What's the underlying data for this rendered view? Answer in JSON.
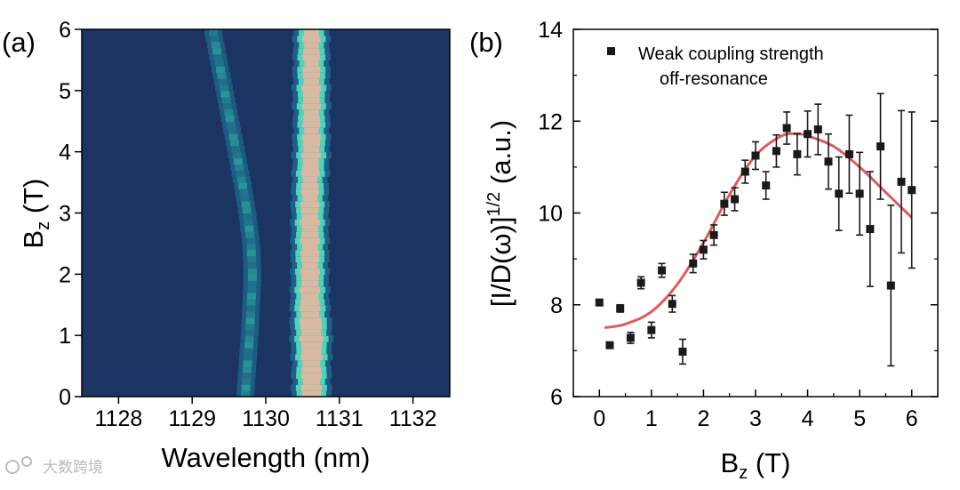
{
  "chart_data": [
    {
      "type": "heatmap",
      "panel_label": "(a)",
      "xlabel": "Wavelength (nm)",
      "ylabel_main": "B",
      "ylabel_sub": "z",
      "ylabel_unit": " (T)",
      "xlim": [
        1127.5,
        1132.5
      ],
      "ylim": [
        0,
        6
      ],
      "xticks": [
        1128,
        1129,
        1130,
        1131,
        1132
      ],
      "yticks": [
        0,
        1,
        2,
        3,
        4,
        5,
        6
      ],
      "colors": {
        "background": "#1c3461",
        "low": "#1d5f86",
        "mid": "#2a9c9c",
        "high": "#4fd3bb",
        "peak": "#d8b9a2"
      },
      "bright_line": [
        {
          "B": 0.0,
          "center": 1130.62,
          "width": 0.26
        },
        {
          "B": 0.5,
          "center": 1130.62,
          "width": 0.26
        },
        {
          "B": 1.0,
          "center": 1130.62,
          "width": 0.3
        },
        {
          "B": 1.5,
          "center": 1130.6,
          "width": 0.26
        },
        {
          "B": 2.0,
          "center": 1130.6,
          "width": 0.24
        },
        {
          "B": 2.5,
          "center": 1130.6,
          "width": 0.24
        },
        {
          "B": 3.0,
          "center": 1130.6,
          "width": 0.24
        },
        {
          "B": 3.5,
          "center": 1130.6,
          "width": 0.22
        },
        {
          "B": 4.0,
          "center": 1130.62,
          "width": 0.24
        },
        {
          "B": 4.5,
          "center": 1130.62,
          "width": 0.22
        },
        {
          "B": 5.0,
          "center": 1130.62,
          "width": 0.24
        },
        {
          "B": 5.5,
          "center": 1130.62,
          "width": 0.22
        },
        {
          "B": 6.0,
          "center": 1130.62,
          "width": 0.22
        }
      ],
      "weak_line": [
        {
          "B": 0.0,
          "center": 1129.72
        },
        {
          "B": 0.5,
          "center": 1129.75
        },
        {
          "B": 1.0,
          "center": 1129.78
        },
        {
          "B": 1.5,
          "center": 1129.8
        },
        {
          "B": 2.0,
          "center": 1129.82
        },
        {
          "B": 2.5,
          "center": 1129.8
        },
        {
          "B": 3.0,
          "center": 1129.75
        },
        {
          "B": 3.5,
          "center": 1129.68
        },
        {
          "B": 4.0,
          "center": 1129.6
        },
        {
          "B": 4.5,
          "center": 1129.52
        },
        {
          "B": 5.0,
          "center": 1129.44
        },
        {
          "B": 5.5,
          "center": 1129.36
        },
        {
          "B": 6.0,
          "center": 1129.28
        }
      ]
    },
    {
      "type": "scatter",
      "panel_label": "(b)",
      "xlabel_main": "B",
      "xlabel_sub": "z",
      "xlabel_unit": " (T)",
      "ylabel_main": "[I/D(ω)]",
      "ylabel_sup": "1/2",
      "ylabel_unit": " (a.u.)",
      "xlim": [
        -0.5,
        6.5
      ],
      "ylim": [
        6,
        14
      ],
      "xticks": [
        0,
        1,
        2,
        3,
        4,
        5,
        6
      ],
      "yticks": [
        6,
        8,
        10,
        12,
        14
      ],
      "legend": [
        "Weak coupling strength",
        "off-resonance"
      ],
      "legend_position": "top-left",
      "points": [
        {
          "x": 0.0,
          "y": 8.05,
          "err": 0.0
        },
        {
          "x": 0.2,
          "y": 7.12,
          "err": 0.0
        },
        {
          "x": 0.4,
          "y": 7.92,
          "err": 0.08
        },
        {
          "x": 0.6,
          "y": 7.28,
          "err": 0.12
        },
        {
          "x": 0.8,
          "y": 8.48,
          "err": 0.13
        },
        {
          "x": 1.0,
          "y": 7.45,
          "err": 0.17
        },
        {
          "x": 1.2,
          "y": 8.75,
          "err": 0.15
        },
        {
          "x": 1.4,
          "y": 8.02,
          "err": 0.18
        },
        {
          "x": 1.6,
          "y": 6.98,
          "err": 0.27
        },
        {
          "x": 1.8,
          "y": 8.9,
          "err": 0.2
        },
        {
          "x": 2.0,
          "y": 9.2,
          "err": 0.2
        },
        {
          "x": 2.2,
          "y": 9.52,
          "err": 0.22
        },
        {
          "x": 2.4,
          "y": 10.2,
          "err": 0.25
        },
        {
          "x": 2.6,
          "y": 10.3,
          "err": 0.25
        },
        {
          "x": 2.8,
          "y": 10.9,
          "err": 0.25
        },
        {
          "x": 3.0,
          "y": 11.25,
          "err": 0.3
        },
        {
          "x": 3.2,
          "y": 10.6,
          "err": 0.3
        },
        {
          "x": 3.4,
          "y": 11.35,
          "err": 0.35
        },
        {
          "x": 3.6,
          "y": 11.85,
          "err": 0.35
        },
        {
          "x": 3.8,
          "y": 11.28,
          "err": 0.45
        },
        {
          "x": 4.0,
          "y": 11.72,
          "err": 0.5
        },
        {
          "x": 4.2,
          "y": 11.82,
          "err": 0.55
        },
        {
          "x": 4.4,
          "y": 11.12,
          "err": 0.6
        },
        {
          "x": 4.6,
          "y": 10.42,
          "err": 0.8
        },
        {
          "x": 4.8,
          "y": 11.28,
          "err": 0.85
        },
        {
          "x": 5.0,
          "y": 10.42,
          "err": 0.9
        },
        {
          "x": 5.2,
          "y": 9.65,
          "err": 1.25
        },
        {
          "x": 5.4,
          "y": 11.45,
          "err": 1.15
        },
        {
          "x": 5.6,
          "y": 8.42,
          "err": 1.75
        },
        {
          "x": 5.8,
          "y": 10.68,
          "err": 1.55
        },
        {
          "x": 6.0,
          "y": 10.5,
          "err": 1.7
        }
      ],
      "fit_curve": {
        "color": "#e05a5a",
        "x": [
          0.1,
          0.5,
          1.0,
          1.5,
          2.0,
          2.5,
          3.0,
          3.5,
          3.8,
          4.0,
          4.5,
          5.0,
          5.5,
          6.0
        ],
        "y": [
          7.5,
          7.58,
          7.85,
          8.45,
          9.35,
          10.4,
          11.25,
          11.68,
          11.72,
          11.68,
          11.45,
          11.0,
          10.45,
          9.9
        ]
      }
    }
  ],
  "watermark": "大数跨境"
}
